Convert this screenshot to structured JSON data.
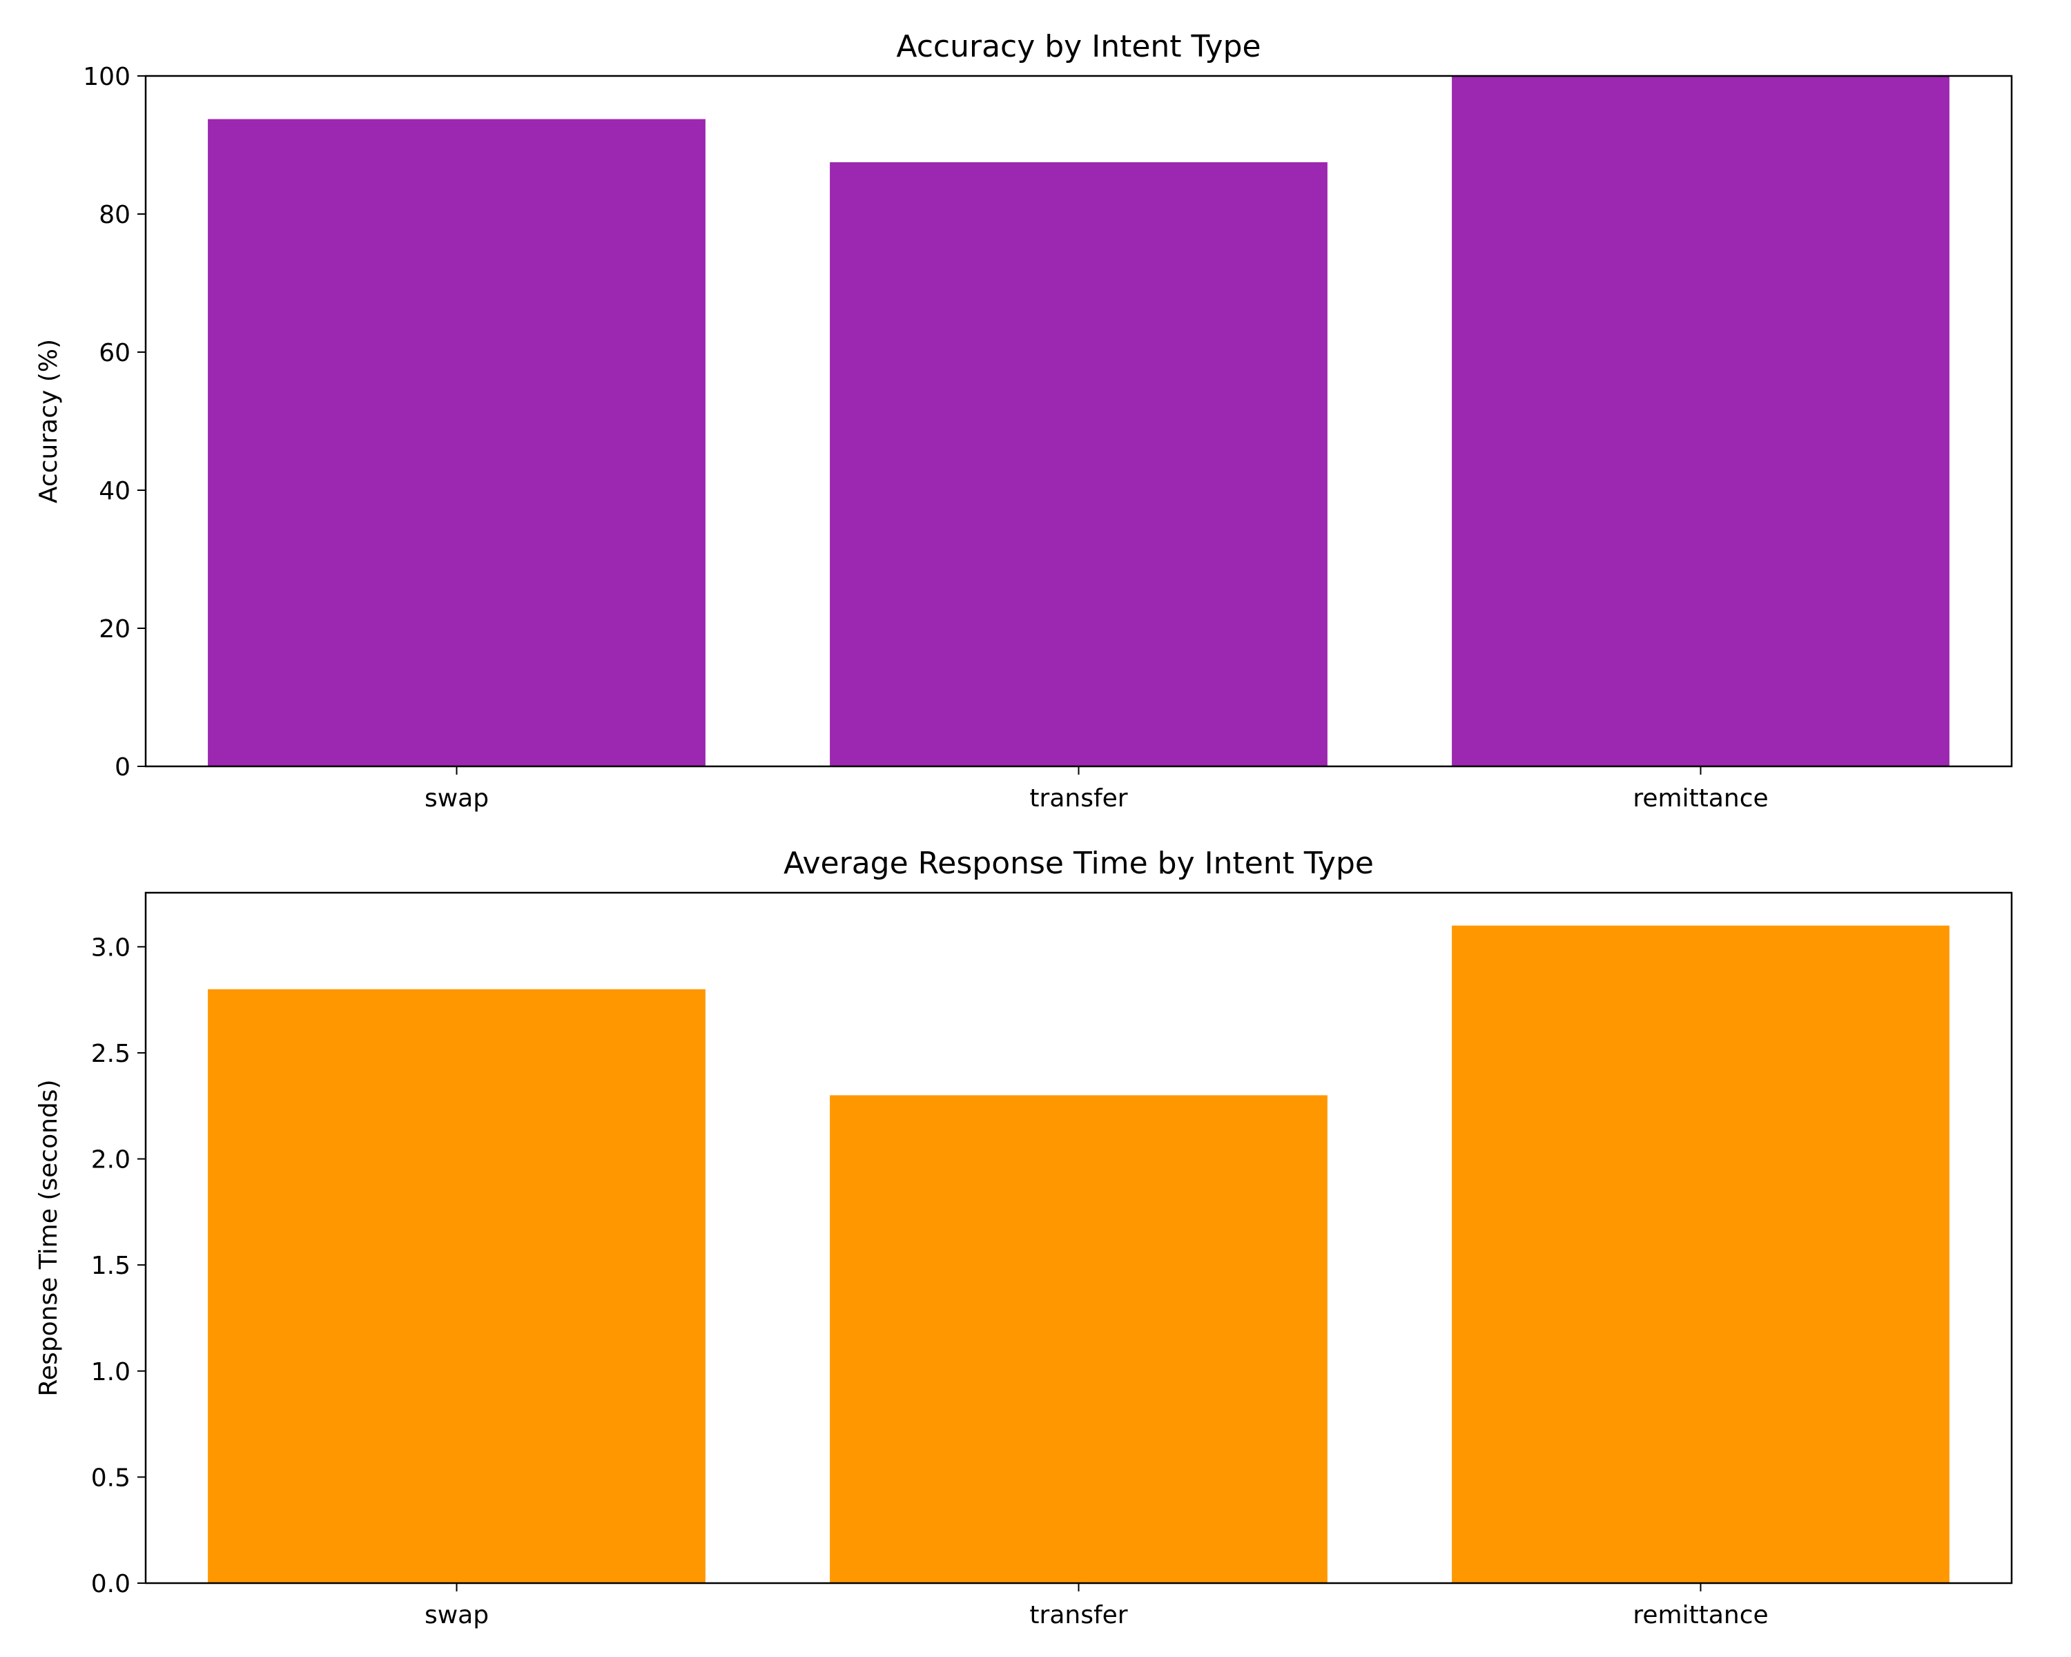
{
  "chart_data": [
    {
      "type": "bar",
      "title": "Accuracy by Intent Type",
      "xlabel": "",
      "ylabel": "Accuracy (%)",
      "categories": [
        "swap",
        "transfer",
        "remittance"
      ],
      "values": [
        93.75,
        87.5,
        100
      ],
      "ylim": [
        0,
        100
      ],
      "yticks": [
        0,
        20,
        40,
        60,
        80,
        100
      ],
      "ytick_labels": [
        "0",
        "20",
        "40",
        "60",
        "80",
        "100"
      ],
      "color": "#9c27b0",
      "grid": false
    },
    {
      "type": "bar",
      "title": "Average Response Time by Intent Type",
      "xlabel": "",
      "ylabel": "Response Time (seconds)",
      "categories": [
        "swap",
        "transfer",
        "remittance"
      ],
      "values": [
        2.8,
        2.3,
        3.1
      ],
      "ylim": [
        0,
        3.255
      ],
      "yticks": [
        0,
        0.5,
        1,
        1.5,
        2,
        2.5,
        3
      ],
      "ytick_labels": [
        "0.0",
        "0.5",
        "1.0",
        "1.5",
        "2.0",
        "2.5",
        "3.0"
      ],
      "color": "#ff9800",
      "grid": false
    }
  ]
}
